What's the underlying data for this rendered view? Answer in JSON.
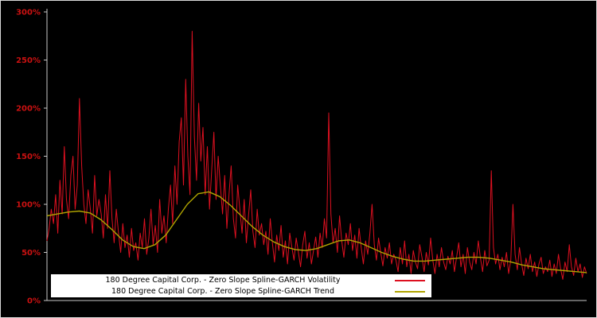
{
  "page": {
    "background": "#000000",
    "frame_border_color": "#d9d9d9"
  },
  "legend": {
    "items": [
      {
        "label": "180 Degree Capital Corp. - Zero Slope Spline-GARCH Volatility",
        "color": "#dd1020"
      },
      {
        "label": "180 Degree Capital Corp. - Zero Slope Spline-GARCH Trend",
        "color": "#b0a400"
      }
    ]
  },
  "chart_data": {
    "type": "line",
    "title": "",
    "xlabel": "",
    "ylabel": "",
    "ylim": [
      0,
      300
    ],
    "yticks": [
      "0%",
      "50%",
      "100%",
      "150%",
      "200%",
      "250%",
      "300%"
    ],
    "ytick_values": [
      0,
      50,
      100,
      150,
      200,
      250,
      300
    ],
    "xticks": [],
    "grid": false,
    "legend_position": "bottom-center",
    "axis_color": "#c8c8c8",
    "tick_label_color": "#cc1111",
    "plot_background": "#000000",
    "series": [
      {
        "id": "volatility",
        "name": "180 Degree Capital Corp. - Zero Slope Spline-GARCH Volatility",
        "color": "#dd1020",
        "stroke_width": 1,
        "values": [
          62,
          75,
          95,
          80,
          110,
          70,
          125,
          90,
          160,
          105,
          85,
          130,
          150,
          95,
          120,
          210,
          140,
          100,
          80,
          115,
          95,
          70,
          130,
          88,
          105,
          90,
          65,
          110,
          75,
          135,
          85,
          60,
          95,
          70,
          50,
          80,
          55,
          68,
          45,
          75,
          52,
          60,
          42,
          70,
          55,
          85,
          48,
          65,
          95,
          58,
          78,
          50,
          105,
          70,
          88,
          60,
          95,
          120,
          80,
          140,
          100,
          165,
          190,
          120,
          230,
          150,
          110,
          280,
          170,
          125,
          205,
          145,
          180,
          110,
          160,
          95,
          135,
          175,
          105,
          150,
          120,
          90,
          130,
          75,
          110,
          140,
          85,
          65,
          120,
          95,
          70,
          105,
          60,
          88,
          115,
          72,
          55,
          95,
          68,
          80,
          58,
          72,
          48,
          85,
          60,
          40,
          68,
          52,
          78,
          45,
          62,
          38,
          70,
          55,
          42,
          65,
          50,
          35,
          58,
          72,
          44,
          60,
          38,
          52,
          66,
          45,
          70,
          55,
          85,
          65,
          195,
          90,
          60,
          75,
          50,
          88,
          62,
          45,
          70,
          58,
          80,
          52,
          68,
          44,
          75,
          55,
          38,
          62,
          48,
          70,
          100,
          58,
          42,
          65,
          50,
          36,
          55,
          44,
          60,
          38,
          48,
          42,
          30,
          55,
          38,
          62,
          35,
          48,
          28,
          52,
          40,
          33,
          58,
          45,
          30,
          50,
          37,
          65,
          42,
          28,
          48,
          35,
          55,
          40,
          32,
          46,
          38,
          52,
          30,
          45,
          60,
          35,
          48,
          28,
          55,
          40,
          32,
          50,
          38,
          62,
          44,
          30,
          52,
          36,
          42,
          135,
          55,
          38,
          48,
          32,
          45,
          35,
          50,
          28,
          42,
          100,
          48,
          32,
          55,
          38,
          26,
          44,
          33,
          48,
          30,
          40,
          25,
          38,
          45,
          28,
          35,
          30,
          42,
          25,
          38,
          28,
          48,
          33,
          22,
          40,
          30,
          58,
          35,
          26,
          44,
          30,
          38,
          24,
          35,
          28
        ]
      },
      {
        "id": "trend",
        "name": "180 Degree Capital Corp. - Zero Slope Spline-GARCH Trend",
        "color": "#b0a400",
        "stroke_width": 1.4,
        "values": [
          88,
          90,
          92,
          93,
          91,
          84,
          74,
          63,
          56,
          54,
          58,
          68,
          84,
          100,
          111,
          113,
          108,
          99,
          88,
          77,
          68,
          61,
          56,
          53,
          52,
          54,
          58,
          62,
          63,
          60,
          55,
          50,
          46,
          43,
          41,
          41,
          42,
          43,
          44,
          45,
          45,
          44,
          42,
          40,
          37,
          35,
          33,
          32,
          31,
          30,
          29
        ]
      }
    ]
  }
}
